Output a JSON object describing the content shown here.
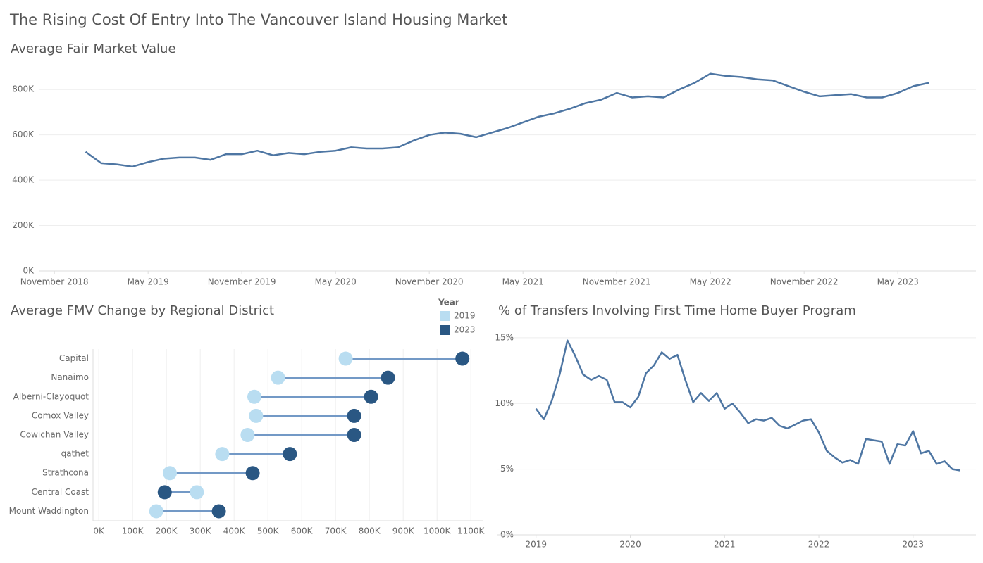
{
  "title": "The Rising Cost Of Entry Into The Vancouver Island Housing Market",
  "chart_data": [
    {
      "type": "line",
      "title": "Average Fair Market Value",
      "color": "#4e76a3",
      "x": [
        "2019-01",
        "2019-02",
        "2019-03",
        "2019-04",
        "2019-05",
        "2019-06",
        "2019-07",
        "2019-08",
        "2019-09",
        "2019-10",
        "2019-11",
        "2019-12",
        "2020-01",
        "2020-02",
        "2020-03",
        "2020-04",
        "2020-05",
        "2020-06",
        "2020-07",
        "2020-08",
        "2020-09",
        "2020-10",
        "2020-11",
        "2020-12",
        "2021-01",
        "2021-02",
        "2021-03",
        "2021-04",
        "2021-05",
        "2021-06",
        "2021-07",
        "2021-08",
        "2021-09",
        "2021-10",
        "2021-11",
        "2021-12",
        "2022-01",
        "2022-02",
        "2022-03",
        "2022-04",
        "2022-05",
        "2022-06",
        "2022-07",
        "2022-08",
        "2022-09",
        "2022-10",
        "2022-11",
        "2022-12",
        "2023-01",
        "2023-02",
        "2023-03",
        "2023-04",
        "2023-05",
        "2023-06",
        "2023-07"
      ],
      "values": [
        525000,
        475000,
        470000,
        460000,
        480000,
        495000,
        500000,
        500000,
        490000,
        515000,
        515000,
        530000,
        510000,
        520000,
        515000,
        525000,
        530000,
        545000,
        540000,
        540000,
        545000,
        575000,
        600000,
        610000,
        605000,
        590000,
        610000,
        630000,
        655000,
        680000,
        695000,
        715000,
        740000,
        755000,
        785000,
        765000,
        770000,
        765000,
        800000,
        830000,
        870000,
        860000,
        855000,
        845000,
        840000,
        815000,
        790000,
        770000,
        775000,
        780000,
        765000,
        765000,
        785000,
        815000,
        830000
      ],
      "xlim": [
        "2018-10",
        "2023-10"
      ],
      "xticks": [
        {
          "value": "2018-11",
          "label": "November 2018"
        },
        {
          "value": "2019-05",
          "label": "May 2019"
        },
        {
          "value": "2019-11",
          "label": "November 2019"
        },
        {
          "value": "2020-05",
          "label": "May 2020"
        },
        {
          "value": "2020-11",
          "label": "November 2020"
        },
        {
          "value": "2021-05",
          "label": "May 2021"
        },
        {
          "value": "2021-11",
          "label": "November 2021"
        },
        {
          "value": "2022-05",
          "label": "May 2022"
        },
        {
          "value": "2022-11",
          "label": "November 2022"
        },
        {
          "value": "2023-05",
          "label": "May 2023"
        }
      ],
      "ylim": [
        0,
        900000
      ],
      "yticks": [
        {
          "value": 0,
          "label": "0K"
        },
        {
          "value": 200000,
          "label": "200K"
        },
        {
          "value": 400000,
          "label": "400K"
        },
        {
          "value": 600000,
          "label": "600K"
        },
        {
          "value": 800000,
          "label": "800K"
        }
      ],
      "grid": true
    },
    {
      "type": "dumbbell",
      "title": "Average FMV Change by Regional District",
      "legend_title": "Year",
      "line_color": "#7399c6",
      "categories": [
        "Capital",
        "Nanaimo",
        "Alberni-Clayoquot",
        "Comox Valley",
        "Cowichan Valley",
        "qathet",
        "Strathcona",
        "Central Coast",
        "Mount Waddington"
      ],
      "series": [
        {
          "name": "2019",
          "color": "#b9ddf1",
          "values": [
            730000,
            530000,
            460000,
            465000,
            440000,
            365000,
            210000,
            290000,
            170000
          ]
        },
        {
          "name": "2023",
          "color": "#2a5783",
          "values": [
            1075000,
            855000,
            805000,
            755000,
            755000,
            565000,
            455000,
            195000,
            355000
          ]
        }
      ],
      "xlim": [
        -17000,
        1135000
      ],
      "xticks": [
        {
          "value": 0,
          "label": "0K"
        },
        {
          "value": 100000,
          "label": "100K"
        },
        {
          "value": 200000,
          "label": "200K"
        },
        {
          "value": 300000,
          "label": "300K"
        },
        {
          "value": 400000,
          "label": "400K"
        },
        {
          "value": 500000,
          "label": "500K"
        },
        {
          "value": 600000,
          "label": "600K"
        },
        {
          "value": 700000,
          "label": "700K"
        },
        {
          "value": 800000,
          "label": "800K"
        },
        {
          "value": 900000,
          "label": "900K"
        },
        {
          "value": 1000000,
          "label": "1000K"
        },
        {
          "value": 1100000,
          "label": "1100K"
        }
      ],
      "grid": true
    },
    {
      "type": "line",
      "title": "% of Transfers Involving First Time Home Buyer Program",
      "color": "#4e76a3",
      "x": [
        "2019-01",
        "2019-02",
        "2019-03",
        "2019-04",
        "2019-05",
        "2019-06",
        "2019-07",
        "2019-08",
        "2019-09",
        "2019-10",
        "2019-11",
        "2019-12",
        "2020-01",
        "2020-02",
        "2020-03",
        "2020-04",
        "2020-05",
        "2020-06",
        "2020-07",
        "2020-08",
        "2020-09",
        "2020-10",
        "2020-11",
        "2020-12",
        "2021-01",
        "2021-02",
        "2021-03",
        "2021-04",
        "2021-05",
        "2021-06",
        "2021-07",
        "2021-08",
        "2021-09",
        "2021-10",
        "2021-11",
        "2021-12",
        "2022-01",
        "2022-02",
        "2022-03",
        "2022-04",
        "2022-05",
        "2022-06",
        "2022-07",
        "2022-08",
        "2022-09",
        "2022-10",
        "2022-11",
        "2022-12",
        "2023-01",
        "2023-02",
        "2023-03",
        "2023-04",
        "2023-05",
        "2023-06",
        "2023-07"
      ],
      "values": [
        9.6,
        8.8,
        10.2,
        12.2,
        14.8,
        13.6,
        12.2,
        11.8,
        12.1,
        11.8,
        10.1,
        10.1,
        9.7,
        10.5,
        12.3,
        12.9,
        13.9,
        13.4,
        13.7,
        11.8,
        10.1,
        10.8,
        10.2,
        10.8,
        9.6,
        10.0,
        9.3,
        8.5,
        8.8,
        8.7,
        8.9,
        8.3,
        8.1,
        8.4,
        8.7,
        8.8,
        7.8,
        6.4,
        5.9,
        5.5,
        5.7,
        5.4,
        7.3,
        7.2,
        7.1,
        5.4,
        6.9,
        6.8,
        7.9,
        6.2,
        6.4,
        5.4,
        5.6,
        5.0,
        4.9
      ],
      "xlim": [
        "2018-08",
        "2023-09"
      ],
      "xticks": [
        {
          "value": "2019-01",
          "label": "2019"
        },
        {
          "value": "2020-01",
          "label": "2020"
        },
        {
          "value": "2021-01",
          "label": "2021"
        },
        {
          "value": "2022-01",
          "label": "2022"
        },
        {
          "value": "2023-01",
          "label": "2023"
        }
      ],
      "ylim": [
        0,
        15.8
      ],
      "yticks": [
        {
          "value": 0,
          "label": "0%"
        },
        {
          "value": 5,
          "label": "5%"
        },
        {
          "value": 10,
          "label": "10%"
        },
        {
          "value": 15,
          "label": "15%"
        }
      ],
      "grid": true
    }
  ]
}
